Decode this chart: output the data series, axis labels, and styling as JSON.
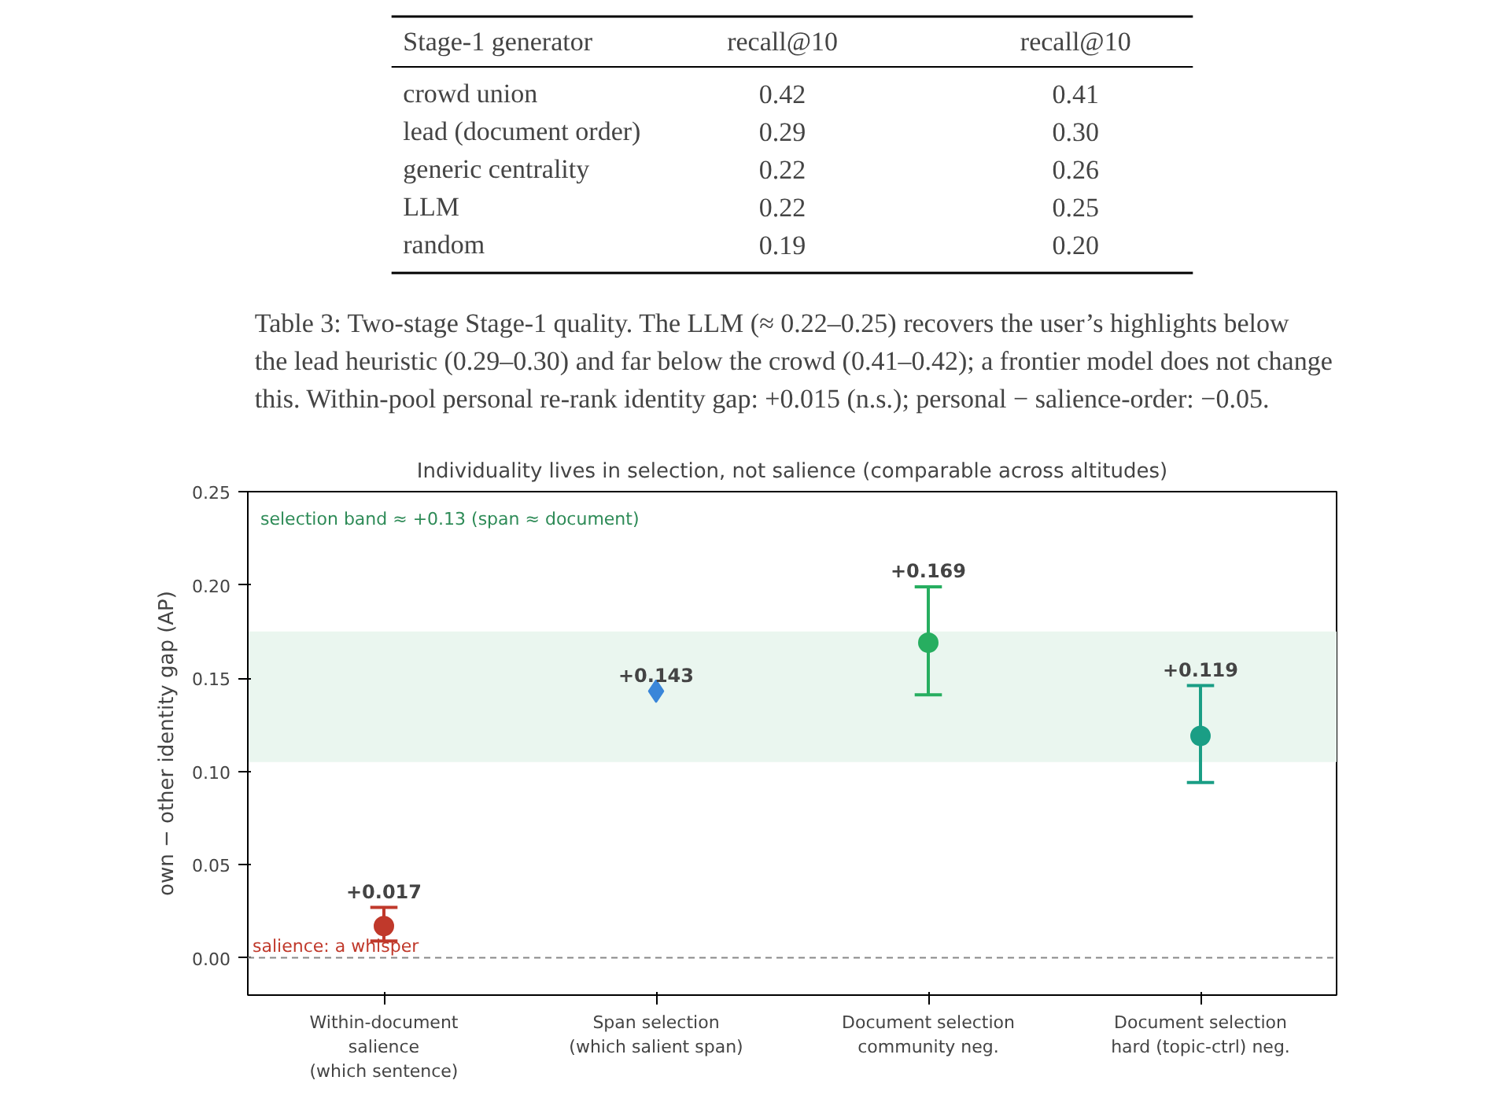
{
  "chart_data": [
    {
      "type": "other",
      "categories": [
        "Stage-1 generator",
        "recall@10",
        "recall@10"
      ],
      "y_categories": [
        "crowd union",
        "lead (document order)",
        "generic centrality",
        "LLM",
        "random"
      ],
      "cell_labels": [
        [
          "0.42",
          "0.41"
        ],
        [
          "0.29",
          "0.30"
        ],
        [
          "0.22",
          "0.26"
        ],
        [
          "0.22",
          "0.25"
        ],
        [
          "0.19",
          "0.20"
        ]
      ],
      "annotations": [
        "Table 3: Two-stage Stage-1 quality. The LLM (≈ 0.22–0.25) recovers the user’s highlights below",
        "the lead heuristic (0.29–0.30) and far below the crowd (0.41–0.42); a frontier model does not change",
        "this. Within-pool personal re-rank identity gap: +0.015 (n.s.); personal − salience-order: −0.05."
      ]
    },
    {
      "type": "scatter",
      "title": "Individuality lives in selection, not salience (comparable across altitudes)",
      "ylabel": "own − other identity gap (AP)",
      "categories": [
        "Within-document\nsalience\n(which sentence)",
        "Span selection\n(which salient span)",
        "Document selection\ncommunity neg.",
        "Document selection\nhard (topic-ctrl) neg."
      ],
      "series": [
        {
          "color": "#c0392b",
          "marker": "circle",
          "values": [
            0.017,
            null,
            null,
            null
          ],
          "errors": [
            [
              0.009,
              0.027
            ],
            null,
            null,
            null
          ],
          "value_labels": [
            "+0.017",
            null,
            null,
            null
          ]
        },
        {
          "color": "#3a86d9",
          "marker": "diamond",
          "values": [
            null,
            0.143,
            null,
            null
          ],
          "value_labels": [
            null,
            "+0.143",
            null,
            null
          ]
        },
        {
          "color": "#27ae60",
          "marker": "circle",
          "values": [
            null,
            null,
            0.169,
            null
          ],
          "errors": [
            null,
            null,
            [
              0.141,
              0.199
            ],
            null
          ],
          "value_labels": [
            null,
            null,
            "+0.169",
            null
          ]
        },
        {
          "color": "#1a9e85",
          "marker": "circle",
          "values": [
            null,
            null,
            null,
            0.119
          ],
          "errors": [
            null,
            null,
            null,
            [
              0.094,
              0.146
            ]
          ],
          "value_labels": [
            null,
            null,
            null,
            "+0.119"
          ]
        }
      ],
      "ylim": [
        -0.02,
        0.25
      ],
      "yticks": [
        {
          "value": 0,
          "label": "0.00"
        },
        {
          "value": 0.05,
          "label": "0.05"
        },
        {
          "value": 0.1,
          "label": "0.10"
        },
        {
          "value": 0.15,
          "label": "0.15"
        },
        {
          "value": 0.2,
          "label": "0.20"
        },
        {
          "value": 0.25,
          "label": "0.25"
        }
      ],
      "annotations": [
        "selection band ≈ +0.13  (span ≈ document)"
      ],
      "bands": [
        {
          "axis": "y",
          "from": 0.105,
          "to": 0.175,
          "color": "#eaf6ef"
        }
      ],
      "ref_lines": [
        {
          "axis": "y",
          "value": 0,
          "color": "#888888",
          "line_style": "dashed",
          "label": "salience: a whisper"
        }
      ],
      "grid": false
    }
  ]
}
